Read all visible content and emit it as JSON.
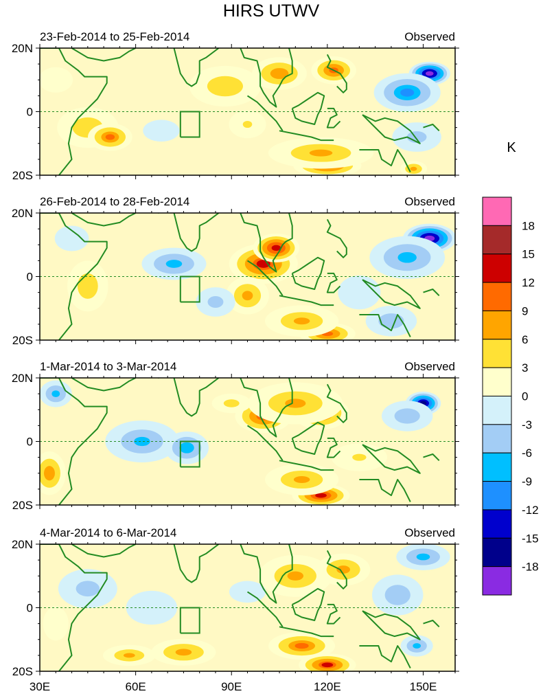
{
  "title": "HIRS UTWV",
  "units_label": "K",
  "panels": [
    {
      "date_range": "23-Feb-2014 to 25-Feb-2014",
      "tag": "Observed",
      "blobs": [
        [
          152,
          12,
          7,
          4,
          -19
        ],
        [
          145,
          6,
          12,
          7,
          -10
        ],
        [
          148,
          -8,
          10,
          6,
          -5
        ],
        [
          120,
          -17,
          12,
          4,
          12
        ],
        [
          118,
          -13,
          20,
          6,
          7
        ],
        [
          105,
          12,
          10,
          6,
          9
        ],
        [
          122,
          13,
          8,
          5,
          11
        ],
        [
          88,
          8,
          14,
          8,
          6
        ],
        [
          45,
          -5,
          12,
          8,
          6
        ],
        [
          52,
          -8,
          8,
          5,
          10
        ],
        [
          68,
          -6,
          10,
          6,
          -2
        ],
        [
          35,
          10,
          8,
          6,
          3
        ],
        [
          147,
          -18,
          5,
          3,
          8
        ],
        [
          95,
          -4,
          8,
          6,
          4
        ]
      ]
    },
    {
      "date_range": "26-Feb-2014 to 28-Feb-2014",
      "tag": "Observed",
      "blobs": [
        [
          152,
          12,
          9,
          5,
          -19
        ],
        [
          145,
          6,
          14,
          8,
          -8
        ],
        [
          100,
          4,
          12,
          7,
          13
        ],
        [
          104,
          9,
          8,
          5,
          15
        ],
        [
          95,
          -6,
          8,
          7,
          8
        ],
        [
          120,
          -18,
          10,
          4,
          11
        ],
        [
          112,
          -14,
          14,
          6,
          7
        ],
        [
          72,
          4,
          12,
          6,
          -8
        ],
        [
          85,
          -8,
          8,
          6,
          -5
        ],
        [
          45,
          -3,
          8,
          10,
          6
        ],
        [
          40,
          12,
          8,
          6,
          -3
        ],
        [
          130,
          -5,
          10,
          8,
          -3
        ],
        [
          140,
          -14,
          10,
          6,
          -6
        ]
      ]
    },
    {
      "date_range": "1-Mar-2014 to 3-Mar-2014",
      "tag": "Observed",
      "blobs": [
        [
          150,
          12,
          6,
          4,
          -18
        ],
        [
          145,
          8,
          10,
          6,
          -6
        ],
        [
          100,
          8,
          10,
          6,
          12
        ],
        [
          118,
          9,
          10,
          6,
          11
        ],
        [
          110,
          12,
          18,
          8,
          7
        ],
        [
          118,
          -17,
          10,
          4,
          14
        ],
        [
          112,
          -12,
          14,
          6,
          7
        ],
        [
          62,
          0,
          14,
          8,
          -7
        ],
        [
          76,
          -2,
          8,
          6,
          -9
        ],
        [
          33,
          -10,
          6,
          8,
          9
        ],
        [
          35,
          15,
          6,
          5,
          -8
        ],
        [
          130,
          -5,
          12,
          6,
          4
        ],
        [
          90,
          12,
          8,
          4,
          5
        ]
      ]
    },
    {
      "date_range": "4-Mar-2014 to 6-Mar-2014",
      "tag": "Observed",
      "blobs": [
        [
          150,
          16,
          10,
          5,
          -8
        ],
        [
          142,
          4,
          10,
          8,
          -6
        ],
        [
          110,
          10,
          14,
          8,
          7
        ],
        [
          125,
          12,
          10,
          6,
          8
        ],
        [
          112,
          -12,
          12,
          5,
          10
        ],
        [
          120,
          -18,
          10,
          4,
          13
        ],
        [
          75,
          -14,
          12,
          5,
          8
        ],
        [
          58,
          -15,
          10,
          4,
          7
        ],
        [
          45,
          6,
          12,
          8,
          -5
        ],
        [
          65,
          0,
          12,
          8,
          -3
        ],
        [
          95,
          5,
          10,
          6,
          -2
        ],
        [
          148,
          -12,
          6,
          4,
          -8
        ],
        [
          35,
          -5,
          6,
          8,
          3
        ]
      ]
    }
  ],
  "axes": {
    "lat_labels": [
      "20N",
      "0",
      "20S"
    ],
    "lat_values": [
      20,
      0,
      -20
    ],
    "lon_labels": [
      "30E",
      "60E",
      "90E",
      "120E",
      "150E"
    ],
    "lon_values": [
      30,
      60,
      90,
      120,
      150
    ],
    "lon_range": [
      30,
      160
    ],
    "lat_range": [
      -20,
      20
    ]
  },
  "colorbar": {
    "levels": [
      -18,
      -15,
      -12,
      -9,
      -6,
      -3,
      0,
      3,
      6,
      9,
      12,
      15,
      18
    ],
    "labels": [
      "-18",
      "-15",
      "-12",
      "-9",
      "-6",
      "-3",
      "0",
      "3",
      "6",
      "9",
      "12",
      "15",
      "18"
    ],
    "colors": [
      "#8a2be2",
      "#00008b",
      "#0000cd",
      "#1e90ff",
      "#00bfff",
      "#a3cdf5",
      "#d4f1fa",
      "#ffffcc",
      "#ffe135",
      "#ffa500",
      "#ff6a00",
      "#cd0000",
      "#a52a2a",
      "#ff69b4"
    ]
  },
  "colors": {
    "coast": "#228b22",
    "equator": "#228b22"
  }
}
